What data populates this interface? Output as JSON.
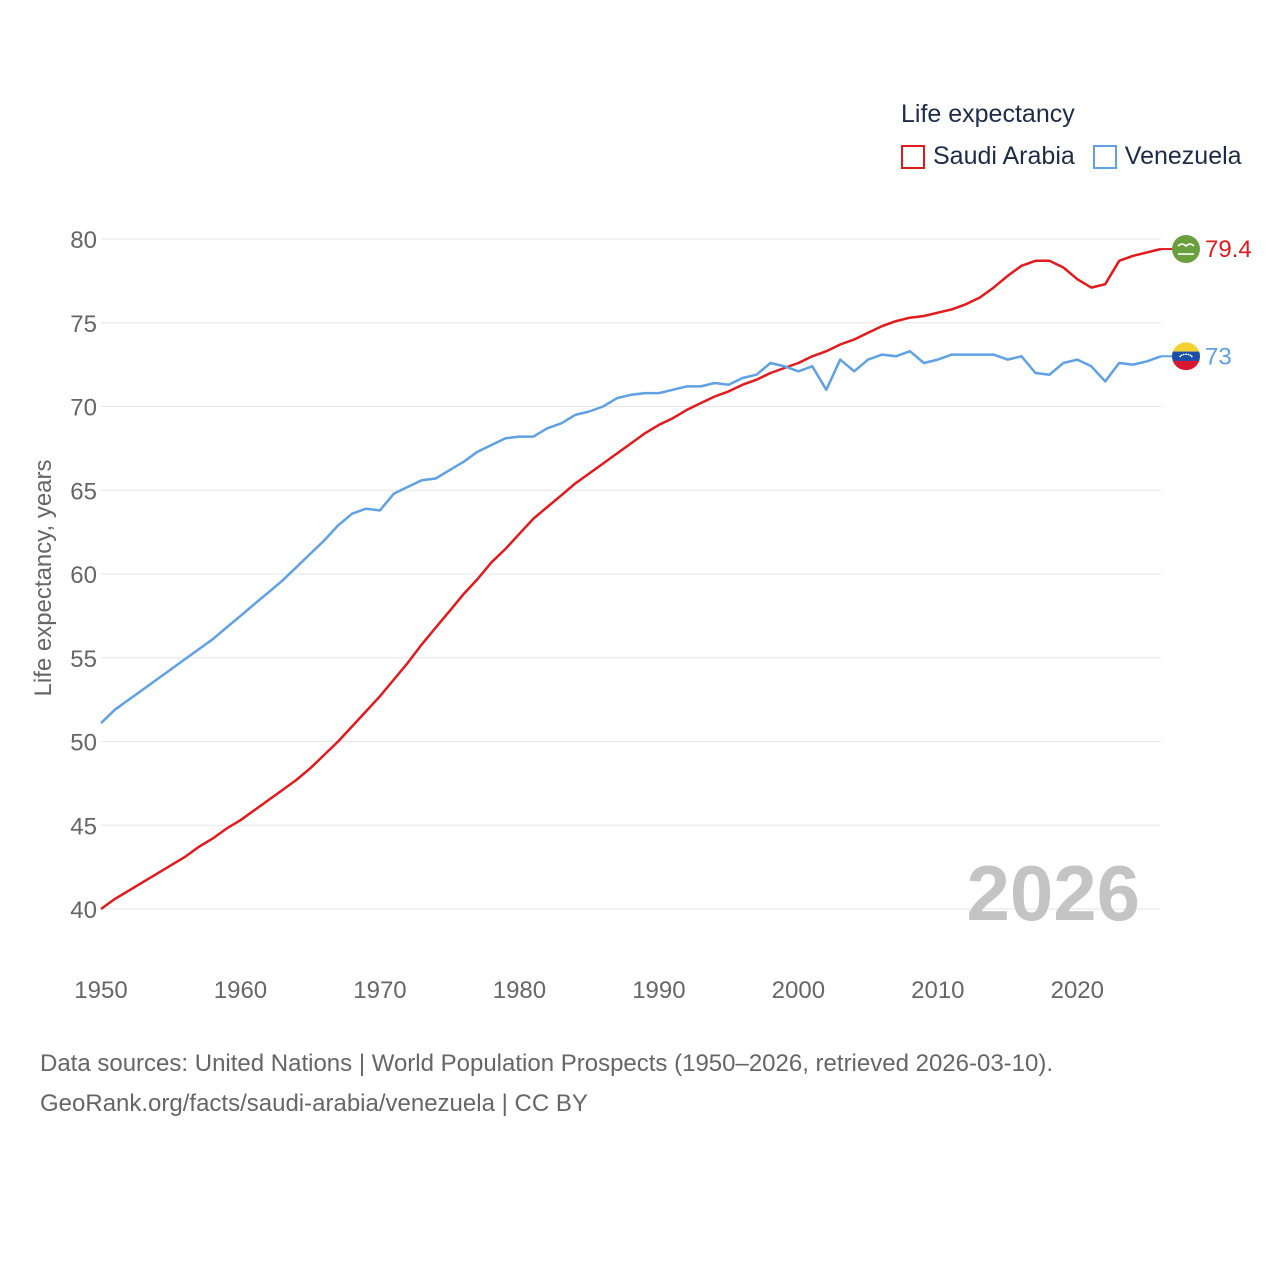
{
  "legend": {
    "title": "Life expectancy"
  },
  "footer": {
    "line1": "Data sources: United Nations | World Population Prospects (1950–2026, retrieved 2026-03-10).",
    "line2": "GeoRank.org/facts/saudi-arabia/venezuela | CC BY"
  },
  "chart_data": {
    "type": "line",
    "title": "Life expectancy",
    "xlabel": "",
    "ylabel": "Life expectancy, years",
    "xlim": [
      1950,
      2026
    ],
    "ylim": [
      38.5,
      80
    ],
    "x_ticks": [
      1950,
      1960,
      1970,
      1980,
      1990,
      2000,
      2010,
      2020
    ],
    "y_ticks": [
      40,
      45,
      50,
      55,
      60,
      65,
      70,
      75,
      80
    ],
    "grid": true,
    "legend_position": "top-right",
    "year_watermark": "2026",
    "x": [
      1950,
      1951,
      1952,
      1953,
      1954,
      1955,
      1956,
      1957,
      1958,
      1959,
      1960,
      1961,
      1962,
      1963,
      1964,
      1965,
      1966,
      1967,
      1968,
      1969,
      1970,
      1971,
      1972,
      1973,
      1974,
      1975,
      1976,
      1977,
      1978,
      1979,
      1980,
      1981,
      1982,
      1983,
      1984,
      1985,
      1986,
      1987,
      1988,
      1989,
      1990,
      1991,
      1992,
      1993,
      1994,
      1995,
      1996,
      1997,
      1998,
      1999,
      2000,
      2001,
      2002,
      2003,
      2004,
      2005,
      2006,
      2007,
      2008,
      2009,
      2010,
      2011,
      2012,
      2013,
      2014,
      2015,
      2016,
      2017,
      2018,
      2019,
      2020,
      2021,
      2022,
      2023,
      2024,
      2025,
      2026
    ],
    "series": [
      {
        "name": "Saudi Arabia",
        "color": "#e31a1c",
        "end_label": "79.4",
        "flag": "saudi-arabia-flag",
        "values": [
          40.0,
          40.6,
          41.1,
          41.6,
          42.1,
          42.6,
          43.1,
          43.7,
          44.2,
          44.8,
          45.3,
          45.9,
          46.5,
          47.1,
          47.7,
          48.4,
          49.2,
          50.0,
          50.9,
          51.8,
          52.7,
          53.7,
          54.7,
          55.8,
          56.8,
          57.8,
          58.8,
          59.7,
          60.7,
          61.5,
          62.4,
          63.3,
          64.0,
          64.7,
          65.4,
          66.0,
          66.6,
          67.2,
          67.8,
          68.4,
          68.9,
          69.3,
          69.8,
          70.2,
          70.6,
          70.9,
          71.3,
          71.6,
          72.0,
          72.3,
          72.6,
          73.0,
          73.3,
          73.7,
          74.0,
          74.4,
          74.8,
          75.1,
          75.3,
          75.4,
          75.6,
          75.8,
          76.1,
          76.5,
          77.1,
          77.8,
          78.4,
          78.7,
          78.7,
          78.3,
          77.6,
          77.1,
          77.3,
          78.7,
          79.0,
          79.2,
          79.4
        ]
      },
      {
        "name": "Venezuela",
        "color": "#5fa1e3",
        "end_label": "73",
        "flag": "venezuela-flag",
        "values": [
          51.1,
          51.9,
          52.5,
          53.1,
          53.7,
          54.3,
          54.9,
          55.5,
          56.1,
          56.8,
          57.5,
          58.2,
          58.9,
          59.6,
          60.4,
          61.2,
          62.0,
          62.9,
          63.6,
          63.9,
          63.8,
          64.8,
          65.2,
          65.6,
          65.7,
          66.2,
          66.7,
          67.3,
          67.7,
          68.1,
          68.2,
          68.2,
          68.7,
          69.0,
          69.5,
          69.7,
          70.0,
          70.5,
          70.7,
          70.8,
          70.8,
          71.0,
          71.2,
          71.2,
          71.4,
          71.3,
          71.7,
          71.9,
          72.6,
          72.4,
          72.1,
          72.4,
          71.0,
          72.8,
          72.1,
          72.8,
          73.1,
          73.0,
          73.3,
          72.6,
          72.8,
          73.1,
          73.1,
          73.1,
          73.1,
          72.8,
          73.0,
          72.0,
          71.9,
          72.6,
          72.8,
          72.4,
          71.5,
          72.6,
          72.5,
          72.7,
          73.0
        ]
      }
    ]
  }
}
